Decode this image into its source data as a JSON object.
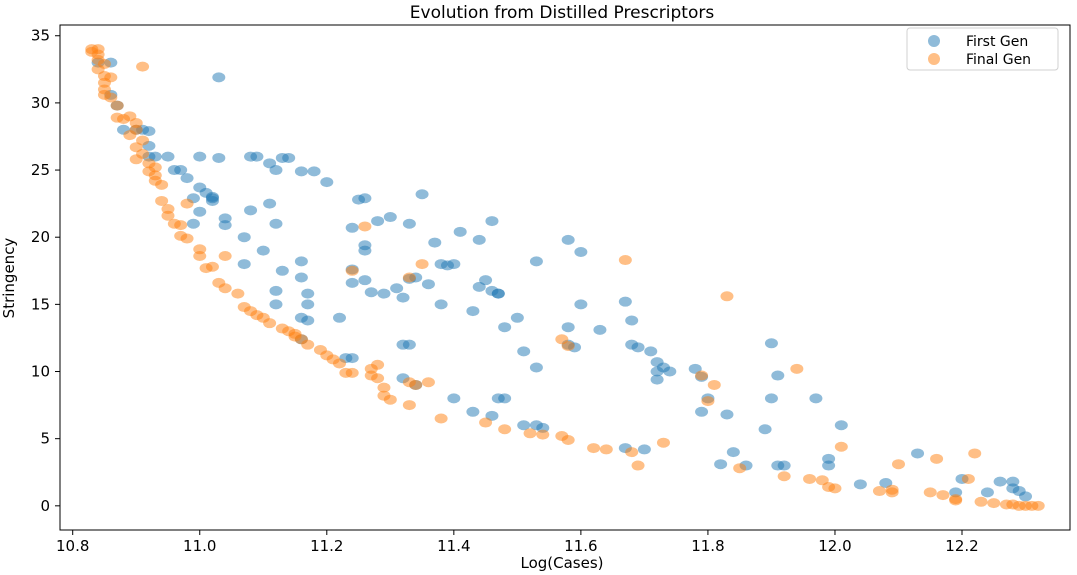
{
  "chart_data": {
    "type": "scatter",
    "title": "Evolution from Distilled Prescriptors",
    "xlabel": "Log(Cases)",
    "ylabel": "Stringency",
    "xlim": [
      10.78,
      12.37
    ],
    "ylim": [
      -1.8,
      35.8
    ],
    "xticks": [
      10.8,
      11.0,
      11.2,
      11.4,
      11.6,
      11.8,
      12.0,
      12.2
    ],
    "xtick_labels": [
      "10.8",
      "11.0",
      "11.2",
      "11.4",
      "11.6",
      "11.8",
      "12.0",
      "12.2"
    ],
    "yticks": [
      0,
      5,
      10,
      15,
      20,
      25,
      30,
      35
    ],
    "ytick_labels": [
      "0",
      "5",
      "10",
      "15",
      "20",
      "25",
      "30",
      "35"
    ],
    "grid": false,
    "legend_position": "top-right",
    "series": [
      {
        "name": "First Gen",
        "color": "#1f77b4",
        "points": [
          [
            10.84,
            33
          ],
          [
            10.86,
            33
          ],
          [
            10.86,
            30.6
          ],
          [
            10.87,
            29.8
          ],
          [
            10.88,
            28
          ],
          [
            10.9,
            28
          ],
          [
            10.91,
            28
          ],
          [
            10.92,
            27.9
          ],
          [
            10.92,
            26.8
          ],
          [
            10.92,
            26
          ],
          [
            10.93,
            26
          ],
          [
            10.95,
            26
          ],
          [
            10.96,
            25
          ],
          [
            10.97,
            25
          ],
          [
            10.98,
            24.4
          ],
          [
            11.0,
            23.7
          ],
          [
            11.01,
            23.3
          ],
          [
            11.02,
            23
          ],
          [
            11.02,
            22.9
          ],
          [
            11.02,
            22.7
          ],
          [
            10.99,
            22.9
          ],
          [
            11.0,
            21.9
          ],
          [
            10.99,
            21
          ],
          [
            11.04,
            21.4
          ],
          [
            11.04,
            20.9
          ],
          [
            11.0,
            26
          ],
          [
            11.03,
            25.9
          ],
          [
            11.03,
            31.9
          ],
          [
            11.08,
            26
          ],
          [
            11.09,
            26
          ],
          [
            11.13,
            25.9
          ],
          [
            11.14,
            25.9
          ],
          [
            11.11,
            25.5
          ],
          [
            11.12,
            25
          ],
          [
            11.16,
            24.9
          ],
          [
            11.18,
            24.9
          ],
          [
            11.2,
            24.1
          ],
          [
            11.08,
            22
          ],
          [
            11.11,
            22.5
          ],
          [
            11.12,
            21
          ],
          [
            11.07,
            20
          ],
          [
            11.1,
            19
          ],
          [
            11.13,
            17.5
          ],
          [
            11.07,
            18
          ],
          [
            11.16,
            18.2
          ],
          [
            11.16,
            17
          ],
          [
            11.17,
            15.8
          ],
          [
            11.12,
            16
          ],
          [
            11.17,
            15
          ],
          [
            11.12,
            15
          ],
          [
            11.16,
            14
          ],
          [
            11.17,
            13.8
          ],
          [
            11.22,
            14
          ],
          [
            11.16,
            12.4
          ],
          [
            11.24,
            17.6
          ],
          [
            11.26,
            16.8
          ],
          [
            11.24,
            16.6
          ],
          [
            11.27,
            15.9
          ],
          [
            11.29,
            15.8
          ],
          [
            11.31,
            16.2
          ],
          [
            11.32,
            15.5
          ],
          [
            11.34,
            17
          ],
          [
            11.33,
            16.9
          ],
          [
            11.36,
            16.5
          ],
          [
            11.38,
            15
          ],
          [
            11.38,
            18
          ],
          [
            11.4,
            18
          ],
          [
            11.39,
            17.9
          ],
          [
            11.37,
            19.6
          ],
          [
            11.41,
            20.4
          ],
          [
            11.44,
            19.8
          ],
          [
            11.43,
            14.5
          ],
          [
            11.44,
            16.3
          ],
          [
            11.45,
            16.8
          ],
          [
            11.46,
            16
          ],
          [
            11.47,
            15.8
          ],
          [
            11.47,
            15.8
          ],
          [
            11.5,
            14
          ],
          [
            11.48,
            13.3
          ],
          [
            11.51,
            11.5
          ],
          [
            11.25,
            22.8
          ],
          [
            11.26,
            22.9
          ],
          [
            11.28,
            21.2
          ],
          [
            11.3,
            21.5
          ],
          [
            11.26,
            19.4
          ],
          [
            11.26,
            19
          ],
          [
            11.24,
            20.7
          ],
          [
            11.33,
            21
          ],
          [
            11.35,
            23.2
          ],
          [
            11.46,
            21.2
          ],
          [
            11.53,
            18.2
          ],
          [
            11.58,
            19.8
          ],
          [
            11.6,
            18.9
          ],
          [
            11.6,
            15
          ],
          [
            11.58,
            13.3
          ],
          [
            11.58,
            12
          ],
          [
            11.59,
            11.8
          ],
          [
            11.53,
            10.3
          ],
          [
            11.63,
            13.1
          ],
          [
            11.67,
            15.2
          ],
          [
            11.68,
            13.8
          ],
          [
            11.68,
            12
          ],
          [
            11.69,
            11.8
          ],
          [
            11.71,
            11.5
          ],
          [
            11.72,
            10.7
          ],
          [
            11.73,
            10.3
          ],
          [
            11.72,
            10
          ],
          [
            11.72,
            9.4
          ],
          [
            11.74,
            10
          ],
          [
            11.78,
            10.2
          ],
          [
            11.79,
            9.6
          ],
          [
            11.8,
            8
          ],
          [
            11.79,
            7
          ],
          [
            11.83,
            6.8
          ],
          [
            11.9,
            12.1
          ],
          [
            11.91,
            9.7
          ],
          [
            11.9,
            8
          ],
          [
            11.89,
            5.7
          ],
          [
            11.97,
            8
          ],
          [
            12.01,
            6
          ],
          [
            11.99,
            3.5
          ],
          [
            11.99,
            3
          ],
          [
            12.04,
            1.6
          ],
          [
            12.08,
            1.7
          ],
          [
            12.13,
            3.9
          ],
          [
            12.2,
            2
          ],
          [
            12.19,
            1
          ],
          [
            12.24,
            1
          ],
          [
            12.26,
            1.8
          ],
          [
            12.28,
            1.8
          ],
          [
            12.28,
            1.3
          ],
          [
            12.29,
            1.1
          ],
          [
            12.3,
            0.7
          ],
          [
            11.32,
            12
          ],
          [
            11.33,
            12
          ],
          [
            11.24,
            11
          ],
          [
            11.23,
            11
          ],
          [
            11.32,
            9.5
          ],
          [
            11.34,
            9
          ],
          [
            11.4,
            8
          ],
          [
            11.47,
            8
          ],
          [
            11.48,
            8
          ],
          [
            11.43,
            7
          ],
          [
            11.46,
            6.7
          ],
          [
            11.51,
            6
          ],
          [
            11.53,
            6
          ],
          [
            11.54,
            5.8
          ],
          [
            11.7,
            4.2
          ],
          [
            11.67,
            4.3
          ],
          [
            11.82,
            3.1
          ],
          [
            11.84,
            4
          ],
          [
            11.86,
            3
          ],
          [
            11.91,
            3
          ],
          [
            11.92,
            3
          ]
        ]
      },
      {
        "name": "Final Gen",
        "color": "#ff7f0e",
        "points": [
          [
            10.83,
            34
          ],
          [
            10.84,
            34
          ],
          [
            10.83,
            33.8
          ],
          [
            10.84,
            33.6
          ],
          [
            10.84,
            33.2
          ],
          [
            10.85,
            32.9
          ],
          [
            10.84,
            32.5
          ],
          [
            10.85,
            32
          ],
          [
            10.86,
            31.9
          ],
          [
            10.85,
            31.5
          ],
          [
            10.85,
            31
          ],
          [
            10.86,
            30.4
          ],
          [
            10.85,
            30.6
          ],
          [
            10.87,
            29.8
          ],
          [
            10.87,
            28.9
          ],
          [
            10.88,
            28.8
          ],
          [
            10.89,
            27.6
          ],
          [
            10.91,
            32.7
          ],
          [
            10.89,
            29
          ],
          [
            10.9,
            28.5
          ],
          [
            10.9,
            28
          ],
          [
            10.91,
            27.2
          ],
          [
            10.9,
            26.7
          ],
          [
            10.91,
            26.2
          ],
          [
            10.9,
            25.8
          ],
          [
            10.92,
            25.5
          ],
          [
            10.93,
            25.2
          ],
          [
            10.92,
            24.9
          ],
          [
            10.93,
            24.6
          ],
          [
            10.93,
            24.2
          ],
          [
            10.94,
            23.9
          ],
          [
            10.94,
            22.7
          ],
          [
            10.95,
            22.1
          ],
          [
            10.95,
            21.6
          ],
          [
            10.96,
            21
          ],
          [
            10.97,
            20.9
          ],
          [
            10.97,
            20.1
          ],
          [
            10.98,
            19.9
          ],
          [
            10.98,
            22.5
          ],
          [
            11.0,
            19.1
          ],
          [
            11.0,
            18.6
          ],
          [
            11.02,
            17.8
          ],
          [
            11.01,
            17.7
          ],
          [
            11.03,
            16.6
          ],
          [
            11.04,
            16.2
          ],
          [
            11.04,
            18.6
          ],
          [
            11.06,
            15.8
          ],
          [
            11.07,
            14.8
          ],
          [
            11.08,
            14.5
          ],
          [
            11.09,
            14.2
          ],
          [
            11.1,
            14
          ],
          [
            11.11,
            13.6
          ],
          [
            11.13,
            13.2
          ],
          [
            11.14,
            13
          ],
          [
            11.15,
            12.8
          ],
          [
            11.15,
            12.6
          ],
          [
            11.16,
            12.4
          ],
          [
            11.17,
            12
          ],
          [
            11.19,
            11.6
          ],
          [
            11.2,
            11.2
          ],
          [
            11.21,
            10.9
          ],
          [
            11.22,
            10.6
          ],
          [
            11.23,
            9.9
          ],
          [
            11.24,
            9.9
          ],
          [
            11.27,
            10.2
          ],
          [
            11.28,
            10.5
          ],
          [
            11.27,
            9.7
          ],
          [
            11.28,
            9.5
          ],
          [
            11.29,
            8.8
          ],
          [
            11.29,
            8.2
          ],
          [
            11.3,
            7.9
          ],
          [
            11.33,
            9.2
          ],
          [
            11.34,
            9
          ],
          [
            11.36,
            9.2
          ],
          [
            11.33,
            7.5
          ],
          [
            11.24,
            17.5
          ],
          [
            11.33,
            17
          ],
          [
            11.35,
            18
          ],
          [
            11.26,
            20.8
          ],
          [
            11.38,
            6.5
          ],
          [
            11.45,
            6.2
          ],
          [
            11.48,
            5.7
          ],
          [
            11.52,
            5.4
          ],
          [
            11.54,
            5.3
          ],
          [
            11.57,
            5.2
          ],
          [
            11.58,
            4.9
          ],
          [
            11.62,
            4.3
          ],
          [
            11.64,
            4.2
          ],
          [
            11.68,
            4
          ],
          [
            11.69,
            3
          ],
          [
            11.73,
            4.7
          ],
          [
            11.67,
            18.3
          ],
          [
            11.57,
            12.4
          ],
          [
            11.58,
            11.9
          ],
          [
            11.79,
            9.7
          ],
          [
            11.81,
            9
          ],
          [
            11.8,
            7.8
          ],
          [
            11.83,
            15.6
          ],
          [
            11.85,
            2.8
          ],
          [
            11.92,
            2.2
          ],
          [
            11.94,
            10.2
          ],
          [
            11.96,
            2
          ],
          [
            11.98,
            1.9
          ],
          [
            11.99,
            1.4
          ],
          [
            12.0,
            1.3
          ],
          [
            12.01,
            4.4
          ],
          [
            12.07,
            1.1
          ],
          [
            12.09,
            1.2
          ],
          [
            12.09,
            1
          ],
          [
            12.1,
            3.1
          ],
          [
            12.15,
            1
          ],
          [
            12.16,
            3.5
          ],
          [
            12.17,
            0.8
          ],
          [
            12.19,
            0.5
          ],
          [
            12.19,
            0.4
          ],
          [
            12.21,
            2
          ],
          [
            12.22,
            3.9
          ],
          [
            12.23,
            0.3
          ],
          [
            12.25,
            0.2
          ],
          [
            12.27,
            0.1
          ],
          [
            12.28,
            0.1
          ],
          [
            12.29,
            0
          ],
          [
            12.3,
            0
          ],
          [
            12.31,
            0
          ],
          [
            12.32,
            0
          ]
        ]
      }
    ]
  }
}
